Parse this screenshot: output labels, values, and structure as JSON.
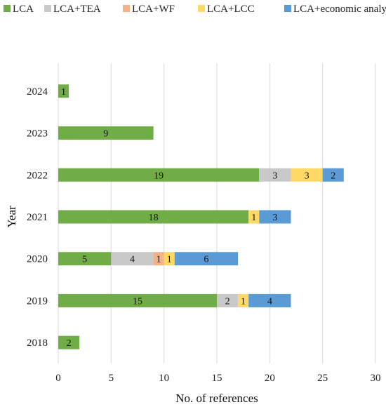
{
  "chart_data": {
    "type": "bar",
    "orientation": "horizontal",
    "stacked": true,
    "title": "",
    "xlabel": "No. of references",
    "ylabel": "Year",
    "xlim": [
      0,
      30
    ],
    "x_ticks": [
      "0",
      "5",
      "10",
      "15",
      "20",
      "25",
      "30"
    ],
    "grid": true,
    "legend_position": "top",
    "categories": [
      "2018",
      "2019",
      "2020",
      "2021",
      "2022",
      "2023",
      "2024"
    ],
    "series": [
      {
        "name": "LCA",
        "color": "#70AD47",
        "values": [
          2,
          15,
          5,
          18,
          19,
          9,
          1
        ]
      },
      {
        "name": "LCA+TEA",
        "color": "#C9C9C9",
        "values": [
          0,
          2,
          4,
          0,
          3,
          0,
          0
        ]
      },
      {
        "name": "LCA+WF",
        "color": "#F4B183",
        "values": [
          0,
          0,
          1,
          0,
          0,
          0,
          0
        ]
      },
      {
        "name": "LCA+LCC",
        "color": "#FFD966",
        "values": [
          0,
          1,
          1,
          1,
          3,
          0,
          0
        ]
      },
      {
        "name": "LCA+economic analysis",
        "color": "#5B9BD5",
        "values": [
          0,
          4,
          6,
          3,
          2,
          0,
          0
        ]
      }
    ]
  }
}
